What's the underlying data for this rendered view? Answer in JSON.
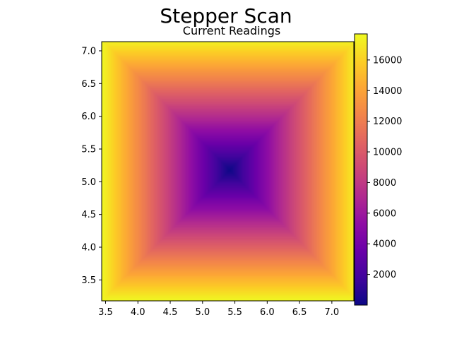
{
  "figure": {
    "title": "Stepper Scan"
  },
  "chart_data": {
    "type": "heatmap",
    "title": "Current Readings",
    "xlabel": "",
    "ylabel": "",
    "colormap": "plasma",
    "xlim": [
      3.44,
      7.34
    ],
    "ylim": [
      3.18,
      7.14
    ],
    "xticks": [
      "3.5",
      "4.0",
      "4.5",
      "5.0",
      "5.5",
      "6.0",
      "6.5",
      "7.0"
    ],
    "yticks": [
      "3.5",
      "4.0",
      "4.5",
      "5.0",
      "5.5",
      "6.0",
      "6.5",
      "7.0"
    ],
    "center": [
      5.42,
      5.18
    ],
    "pattern": "square pyramid (max of |dx|, |dy|): minimum at center, maximum at the edges",
    "value_min": 0,
    "value_max": 17700,
    "colorbar": {
      "ticks": [
        "2000",
        "4000",
        "6000",
        "8000",
        "10000",
        "12000",
        "14000",
        "16000"
      ],
      "range": [
        0,
        17700
      ]
    },
    "grid": false
  }
}
